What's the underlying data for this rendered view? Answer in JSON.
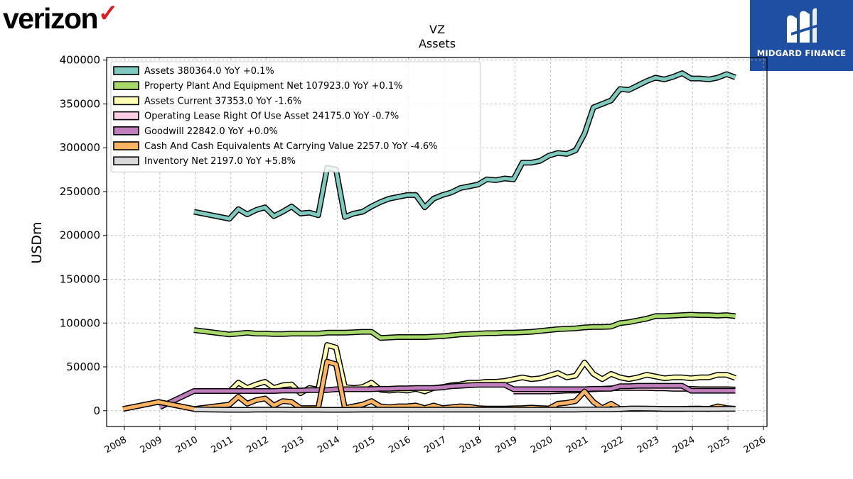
{
  "brand": {
    "left_logo": "verizon",
    "right_logo": "MIDGARD FINANCE"
  },
  "chart_data": {
    "type": "line",
    "title": "VZ",
    "subtitle": "Assets",
    "ylabel": "USDm",
    "xlabel": "",
    "xlim": [
      2007.5,
      2026.1
    ],
    "ylim": [
      -18000,
      403000
    ],
    "yticks": [
      0,
      50000,
      100000,
      150000,
      200000,
      250000,
      300000,
      350000,
      400000
    ],
    "xticks": [
      2008,
      2009,
      2010,
      2011,
      2012,
      2013,
      2014,
      2015,
      2016,
      2017,
      2018,
      2019,
      2020,
      2021,
      2022,
      2023,
      2024,
      2025,
      2026
    ],
    "grid": true,
    "legend_position": "top-left",
    "series": [
      {
        "name": "Assets  380364.0 YoY +0.1%",
        "color": "#7fcabf",
        "x": [
          2009.96,
          2010.96,
          2011.21,
          2011.46,
          2011.71,
          2011.96,
          2012.21,
          2012.46,
          2012.71,
          2012.96,
          2013.21,
          2013.46,
          2013.71,
          2013.96,
          2014.21,
          2014.46,
          2014.71,
          2014.96,
          2015.21,
          2015.46,
          2015.71,
          2015.96,
          2016.21,
          2016.46,
          2016.71,
          2016.96,
          2017.21,
          2017.46,
          2017.71,
          2017.96,
          2018.21,
          2018.46,
          2018.71,
          2018.96,
          2019.21,
          2019.46,
          2019.71,
          2019.96,
          2020.21,
          2020.46,
          2020.71,
          2020.96,
          2021.21,
          2021.46,
          2021.71,
          2021.96,
          2022.21,
          2022.46,
          2022.71,
          2022.96,
          2023.21,
          2023.46,
          2023.71,
          2023.96,
          2024.21,
          2024.46,
          2024.71,
          2024.96,
          2025.21
        ],
        "y": [
          227000,
          219000,
          230000,
          224000,
          229000,
          232000,
          222000,
          227000,
          233000,
          225000,
          226000,
          223000,
          277000,
          275000,
          221000,
          225000,
          227000,
          233000,
          238000,
          242000,
          244000,
          246000,
          246000,
          232000,
          242000,
          246000,
          249000,
          254000,
          256000,
          258000,
          264000,
          263000,
          265000,
          264000,
          283000,
          283000,
          285000,
          291000,
          294000,
          293000,
          297000,
          316000,
          346000,
          350000,
          354000,
          367000,
          366000,
          371000,
          376000,
          380000,
          378000,
          381000,
          385000,
          379000,
          379000,
          378000,
          380000,
          384000,
          380364
        ]
      },
      {
        "name": "Property Plant And Equipment Net  107923.0 YoY +0.1%",
        "color": "#a6d96a",
        "x": [
          2009.96,
          2010.96,
          2011.21,
          2011.46,
          2011.71,
          2011.96,
          2012.21,
          2012.46,
          2012.71,
          2012.96,
          2013.21,
          2013.46,
          2013.71,
          2013.96,
          2014.21,
          2014.46,
          2014.71,
          2014.96,
          2015.21,
          2015.46,
          2015.71,
          2015.96,
          2016.21,
          2016.46,
          2016.71,
          2016.96,
          2017.21,
          2017.46,
          2017.71,
          2017.96,
          2018.21,
          2018.46,
          2018.71,
          2018.96,
          2019.21,
          2019.46,
          2019.71,
          2019.96,
          2020.21,
          2020.46,
          2020.71,
          2020.96,
          2021.21,
          2021.46,
          2021.71,
          2021.96,
          2022.21,
          2022.46,
          2022.71,
          2022.96,
          2023.21,
          2023.46,
          2023.71,
          2023.96,
          2024.21,
          2024.46,
          2024.71,
          2024.96,
          2025.21
        ],
        "y": [
          92000,
          87000,
          88000,
          89000,
          88000,
          88000,
          87500,
          87500,
          88000,
          88000,
          88000,
          88000,
          89000,
          89000,
          89000,
          89500,
          90000,
          90000,
          83000,
          83500,
          84000,
          84000,
          84000,
          84000,
          84500,
          85000,
          86000,
          87000,
          87500,
          88000,
          88500,
          88500,
          89000,
          89000,
          89500,
          90000,
          91000,
          92000,
          93000,
          93500,
          94000,
          95000,
          95500,
          95500,
          96000,
          100000,
          101000,
          103000,
          105000,
          108000,
          108000,
          108500,
          109000,
          109500,
          109000,
          109000,
          108500,
          109000,
          107923
        ]
      },
      {
        "name": "Assets Current  37353.0 YoY -1.6%",
        "color": "#ffffb3",
        "x": [
          2010.96,
          2011.21,
          2011.46,
          2011.71,
          2011.96,
          2012.21,
          2012.46,
          2012.71,
          2012.96,
          2013.21,
          2013.46,
          2013.71,
          2013.96,
          2014.21,
          2014.46,
          2014.71,
          2014.96,
          2015.21,
          2015.46,
          2015.71,
          2015.96,
          2016.21,
          2016.46,
          2016.71,
          2016.96,
          2017.21,
          2017.46,
          2017.71,
          2017.96,
          2018.21,
          2018.46,
          2018.71,
          2018.96,
          2019.21,
          2019.46,
          2019.71,
          2019.96,
          2020.21,
          2020.46,
          2020.71,
          2020.96,
          2021.21,
          2021.46,
          2021.71,
          2021.96,
          2022.21,
          2022.46,
          2022.71,
          2022.96,
          2023.21,
          2023.46,
          2023.71,
          2023.96,
          2024.21,
          2024.46,
          2024.71,
          2024.96,
          2025.21
        ],
        "y": [
          22000,
          32000,
          26000,
          30000,
          33000,
          26000,
          29000,
          30000,
          20000,
          26000,
          24000,
          75000,
          72000,
          27000,
          26000,
          27000,
          32000,
          24000,
          23000,
          24000,
          23000,
          25000,
          22000,
          26000,
          27000,
          29000,
          30000,
          32000,
          32000,
          33000,
          33000,
          34000,
          36000,
          38000,
          36000,
          37000,
          40000,
          43000,
          38000,
          40000,
          55000,
          42000,
          36000,
          42000,
          38000,
          36000,
          38000,
          41000,
          39000,
          37000,
          38000,
          38000,
          37000,
          38000,
          38000,
          41000,
          41000,
          37353
        ]
      },
      {
        "name": "Operating Lease Right Of Use Asset  24175.0 YoY -0.7%",
        "color": "#fbcde5",
        "x": [
          2018.96,
          2019.21,
          2019.46,
          2019.71,
          2019.96,
          2020.21,
          2020.46,
          2020.71,
          2020.96,
          2021.21,
          2021.46,
          2021.71,
          2021.96,
          2022.21,
          2022.46,
          2022.71,
          2022.96,
          2023.21,
          2023.46,
          2023.71,
          2023.96,
          2024.21,
          2024.46,
          2024.71,
          2024.96,
          2025.21
        ],
        "y": [
          22000,
          22000,
          22000,
          22000,
          22000,
          22500,
          23000,
          23000,
          24000,
          24500,
          25000,
          25500,
          26000,
          26000,
          26000,
          26000,
          25500,
          25500,
          25000,
          25000,
          25000,
          24500,
          24500,
          24500,
          24500,
          24175
        ]
      },
      {
        "name": "Goodwill  22842.0 YoY +0.0%",
        "color": "#c17ebd",
        "x": [
          2009.0,
          2009.96,
          2010.96,
          2011.21,
          2011.46,
          2011.71,
          2011.96,
          2012.21,
          2012.46,
          2012.71,
          2012.96,
          2013.21,
          2013.46,
          2013.71,
          2013.96,
          2014.21,
          2014.46,
          2014.71,
          2014.96,
          2015.21,
          2015.46,
          2015.71,
          2015.96,
          2016.21,
          2016.46,
          2016.71,
          2016.96,
          2017.21,
          2017.46,
          2017.71,
          2017.96,
          2018.21,
          2018.46,
          2018.71,
          2018.96,
          2019.21,
          2019.46,
          2019.71,
          2019.96,
          2020.21,
          2020.46,
          2020.71,
          2020.96,
          2021.21,
          2021.46,
          2021.71,
          2021.96,
          2022.21,
          2022.46,
          2022.71,
          2022.96,
          2023.21,
          2023.46,
          2023.71,
          2023.96,
          2024.21,
          2024.46,
          2024.71,
          2024.96,
          2025.21
        ],
        "y": [
          4000,
          22500,
          22500,
          22500,
          22500,
          22500,
          22500,
          22500,
          23000,
          23000,
          23000,
          23500,
          23500,
          23500,
          24500,
          24500,
          24500,
          24500,
          24500,
          25000,
          25000,
          25500,
          25500,
          26000,
          26000,
          26000,
          26500,
          28000,
          28500,
          29000,
          29500,
          29500,
          29500,
          29500,
          24500,
          24500,
          24500,
          24500,
          24500,
          24500,
          24500,
          24500,
          24500,
          25000,
          25000,
          25000,
          28000,
          28000,
          28500,
          28500,
          28500,
          28500,
          28500,
          28500,
          22800,
          22800,
          22800,
          22800,
          22842,
          22842
        ]
      },
      {
        "name": "Cash And Cash Equivalents At Carrying Value  2257.0 YoY -4.6%",
        "color": "#fdb462",
        "x": [
          2007.96,
          2008.96,
          2009.96,
          2010.96,
          2011.21,
          2011.46,
          2011.71,
          2011.96,
          2012.21,
          2012.46,
          2012.71,
          2012.96,
          2013.21,
          2013.46,
          2013.71,
          2013.96,
          2014.21,
          2014.46,
          2014.71,
          2014.96,
          2015.21,
          2015.46,
          2015.71,
          2015.96,
          2016.21,
          2016.46,
          2016.71,
          2016.96,
          2017.21,
          2017.46,
          2017.71,
          2017.96,
          2018.21,
          2018.46,
          2018.71,
          2018.96,
          2019.21,
          2019.46,
          2019.71,
          2019.96,
          2020.21,
          2020.46,
          2020.71,
          2020.96,
          2021.21,
          2021.46,
          2021.71,
          2021.96,
          2022.21,
          2022.46,
          2022.71,
          2022.96,
          2023.21,
          2023.46,
          2023.71,
          2023.96,
          2024.21,
          2024.46,
          2024.71,
          2024.96,
          2025.21
        ],
        "y": [
          2000,
          10000,
          2000,
          7000,
          16000,
          8000,
          12000,
          14000,
          6000,
          11000,
          10000,
          3000,
          3000,
          3000,
          56000,
          53000,
          3000,
          5000,
          7000,
          11000,
          5000,
          4000,
          5000,
          5000,
          6000,
          3000,
          6000,
          3000,
          4000,
          5000,
          4500,
          3000,
          2500,
          2500,
          2500,
          2700,
          3000,
          3500,
          3000,
          2600,
          8000,
          9000,
          11000,
          22000,
          10000,
          3000,
          8000,
          2000,
          2000,
          2000,
          2200,
          2000,
          2000,
          2000,
          2000,
          2500,
          2500,
          2000,
          5000,
          3000,
          2257
        ]
      },
      {
        "name": "Inventory Net  2197.0 YoY +5.8%",
        "color": "#d9d9d9",
        "x": [
          2009.96,
          2010.96,
          2011.21,
          2011.46,
          2011.71,
          2011.96,
          2012.21,
          2012.46,
          2012.71,
          2012.96,
          2013.21,
          2013.46,
          2013.71,
          2013.96,
          2014.21,
          2014.46,
          2014.71,
          2014.96,
          2015.21,
          2015.46,
          2015.71,
          2015.96,
          2016.21,
          2016.46,
          2016.71,
          2016.96,
          2017.21,
          2017.46,
          2017.71,
          2017.96,
          2018.21,
          2018.46,
          2018.71,
          2018.96,
          2019.21,
          2019.46,
          2019.71,
          2019.96,
          2020.21,
          2020.46,
          2020.71,
          2020.96,
          2021.21,
          2021.46,
          2021.71,
          2021.96,
          2022.21,
          2022.46,
          2022.71,
          2022.96,
          2023.21,
          2023.46,
          2023.71,
          2023.96,
          2024.21,
          2024.46,
          2024.71,
          2024.96,
          2025.21
        ],
        "y": [
          1500,
          1000,
          1000,
          1000,
          1200,
          1200,
          1200,
          1200,
          1100,
          1100,
          1100,
          1100,
          1000,
          1000,
          1000,
          1100,
          1200,
          1200,
          1200,
          1300,
          1300,
          1300,
          1300,
          1200,
          1200,
          1200,
          1300,
          1300,
          1300,
          1300,
          1300,
          1300,
          1300,
          1300,
          1300,
          1300,
          1300,
          1200,
          1300,
          1300,
          1300,
          1400,
          1400,
          1400,
          1400,
          1800,
          2500,
          2600,
          2500,
          2300,
          2000,
          2000,
          2000,
          2000,
          2000,
          2000,
          2000,
          2200,
          2197
        ]
      }
    ]
  }
}
